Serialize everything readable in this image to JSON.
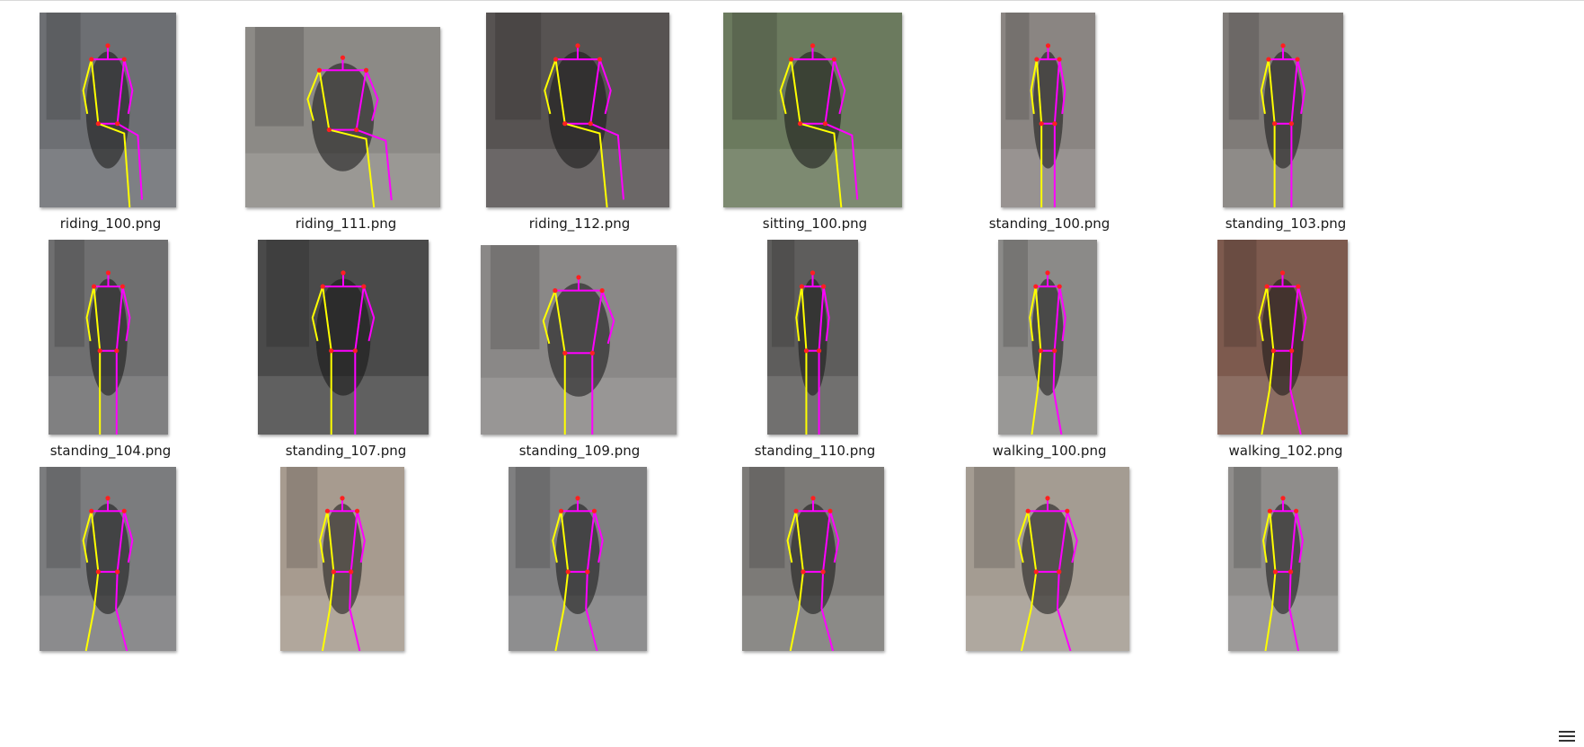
{
  "files": [
    {
      "name": "riding_100.png",
      "bg": "#6d6f73",
      "pose": "riding",
      "row": 0,
      "col": 0
    },
    {
      "name": "riding_111.png",
      "bg": "#8c8a86",
      "pose": "riding",
      "row": 0,
      "col": 1
    },
    {
      "name": "riding_112.png",
      "bg": "#575352",
      "pose": "riding",
      "row": 0,
      "col": 2
    },
    {
      "name": "sitting_100.png",
      "bg": "#6b7a5e",
      "pose": "sitting",
      "row": 0,
      "col": 3
    },
    {
      "name": "standing_100.png",
      "bg": "#8a8582",
      "pose": "standing",
      "row": 0,
      "col": 4
    },
    {
      "name": "standing_103.png",
      "bg": "#7f7b78",
      "pose": "standing",
      "row": 0,
      "col": 5
    },
    {
      "name": "standing_104.png",
      "bg": "#6f6f70",
      "pose": "standing",
      "row": 1,
      "col": 0
    },
    {
      "name": "standing_107.png",
      "bg": "#4a4a4a",
      "pose": "standing",
      "row": 1,
      "col": 1
    },
    {
      "name": "standing_109.png",
      "bg": "#8a8887",
      "pose": "standing",
      "row": 1,
      "col": 2
    },
    {
      "name": "standing_110.png",
      "bg": "#5e5d5c",
      "pose": "standing",
      "row": 1,
      "col": 3
    },
    {
      "name": "walking_100.png",
      "bg": "#8b8a88",
      "pose": "walking",
      "row": 1,
      "col": 4
    },
    {
      "name": "walking_102.png",
      "bg": "#7d5a4e",
      "pose": "walking",
      "row": 1,
      "col": 5
    },
    {
      "name": "",
      "bg": "#7b7c7e",
      "pose": "walking",
      "row": 2,
      "col": 0
    },
    {
      "name": "",
      "bg": "#a79b8f",
      "pose": "walking",
      "row": 2,
      "col": 1
    },
    {
      "name": "",
      "bg": "#7f7f80",
      "pose": "walking",
      "row": 2,
      "col": 2
    },
    {
      "name": "",
      "bg": "#7c7a77",
      "pose": "walking",
      "row": 2,
      "col": 3
    },
    {
      "name": "",
      "bg": "#a49c92",
      "pose": "walking",
      "row": 2,
      "col": 4
    },
    {
      "name": "",
      "bg": "#8f8d8b",
      "pose": "walking",
      "row": 2,
      "col": 5
    }
  ],
  "skeleton_colors": {
    "limb_a": "#ff00ff",
    "limb_b": "#ffff00",
    "joint": "#ff2020"
  }
}
